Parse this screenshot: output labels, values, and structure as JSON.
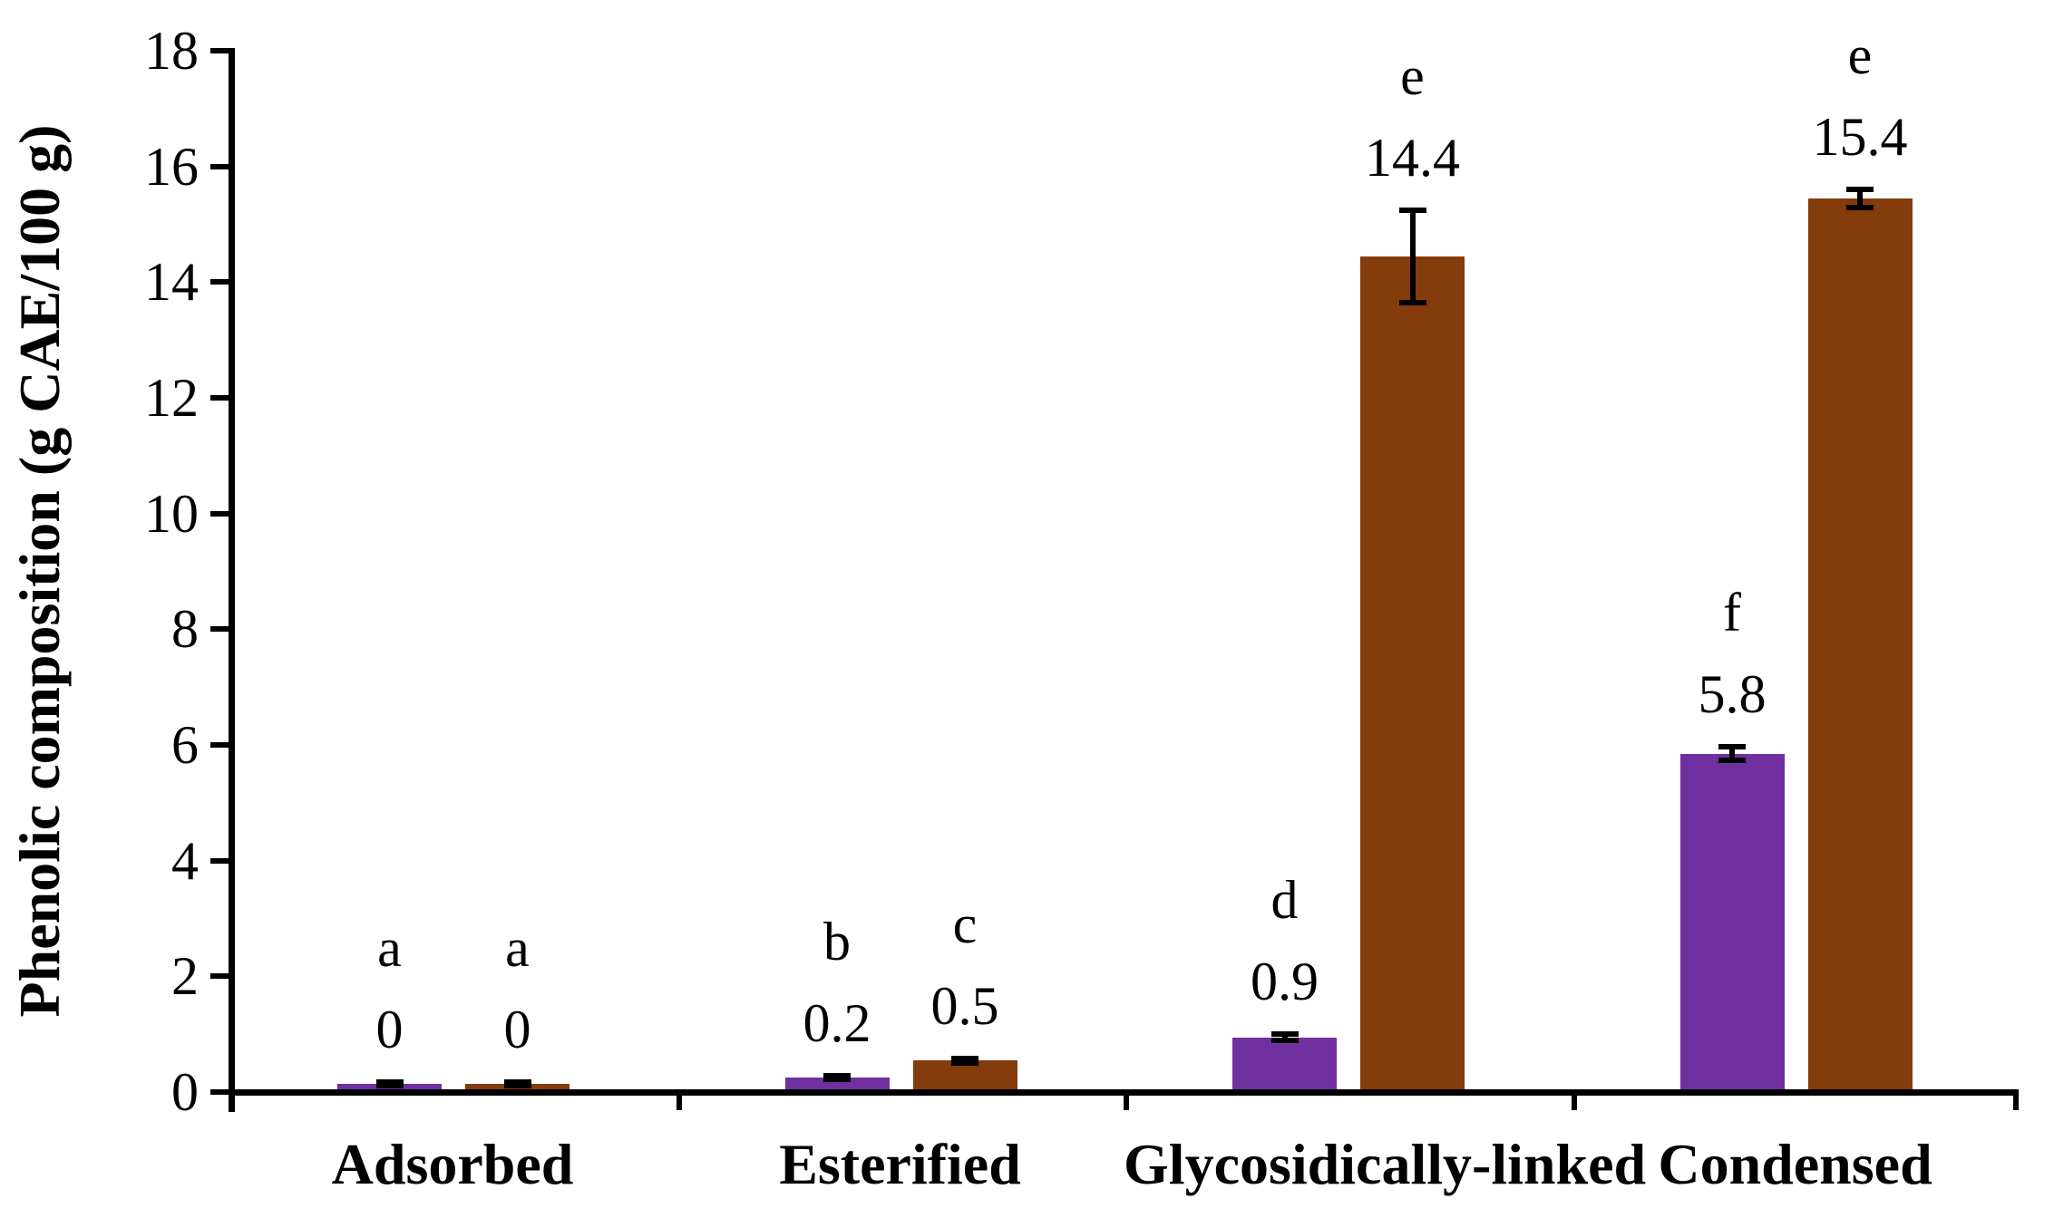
{
  "figure": {
    "background_color": "#ffffff",
    "axis_color": "#000000",
    "text_color": "#000000"
  },
  "chart_data": {
    "type": "bar",
    "title": "",
    "xlabel": "",
    "ylabel": "Phenolic composition (g CAE/100 g)",
    "ylim": [
      0,
      18
    ],
    "yticks": [
      0,
      2,
      4,
      6,
      8,
      10,
      12,
      14,
      16,
      18
    ],
    "grid": false,
    "legend_position": "none",
    "categories": [
      "Adsorbed",
      "Esterified",
      "Glycosidically-linked",
      "Condensed"
    ],
    "series": [
      {
        "name": "purple-series",
        "color": "#7030A0",
        "values": [
          0,
          0.2,
          0.9,
          5.8
        ],
        "value_labels": [
          "0",
          "0.2",
          "0.9",
          "5.8"
        ],
        "significance_letters": [
          "a",
          "b",
          "d",
          "f"
        ],
        "error_bars": [
          0.03,
          0.03,
          0.05,
          0.12
        ]
      },
      {
        "name": "brown-series",
        "color": "#843C0C",
        "values": [
          0,
          0.5,
          14.4,
          15.4
        ],
        "value_labels": [
          "0",
          "0.5",
          "14.4",
          "15.4"
        ],
        "significance_letters": [
          "a",
          "c",
          "e",
          "e"
        ],
        "error_bars": [
          0.03,
          0.04,
          0.8,
          0.16
        ]
      }
    ],
    "error_bar_color": "#000000"
  }
}
